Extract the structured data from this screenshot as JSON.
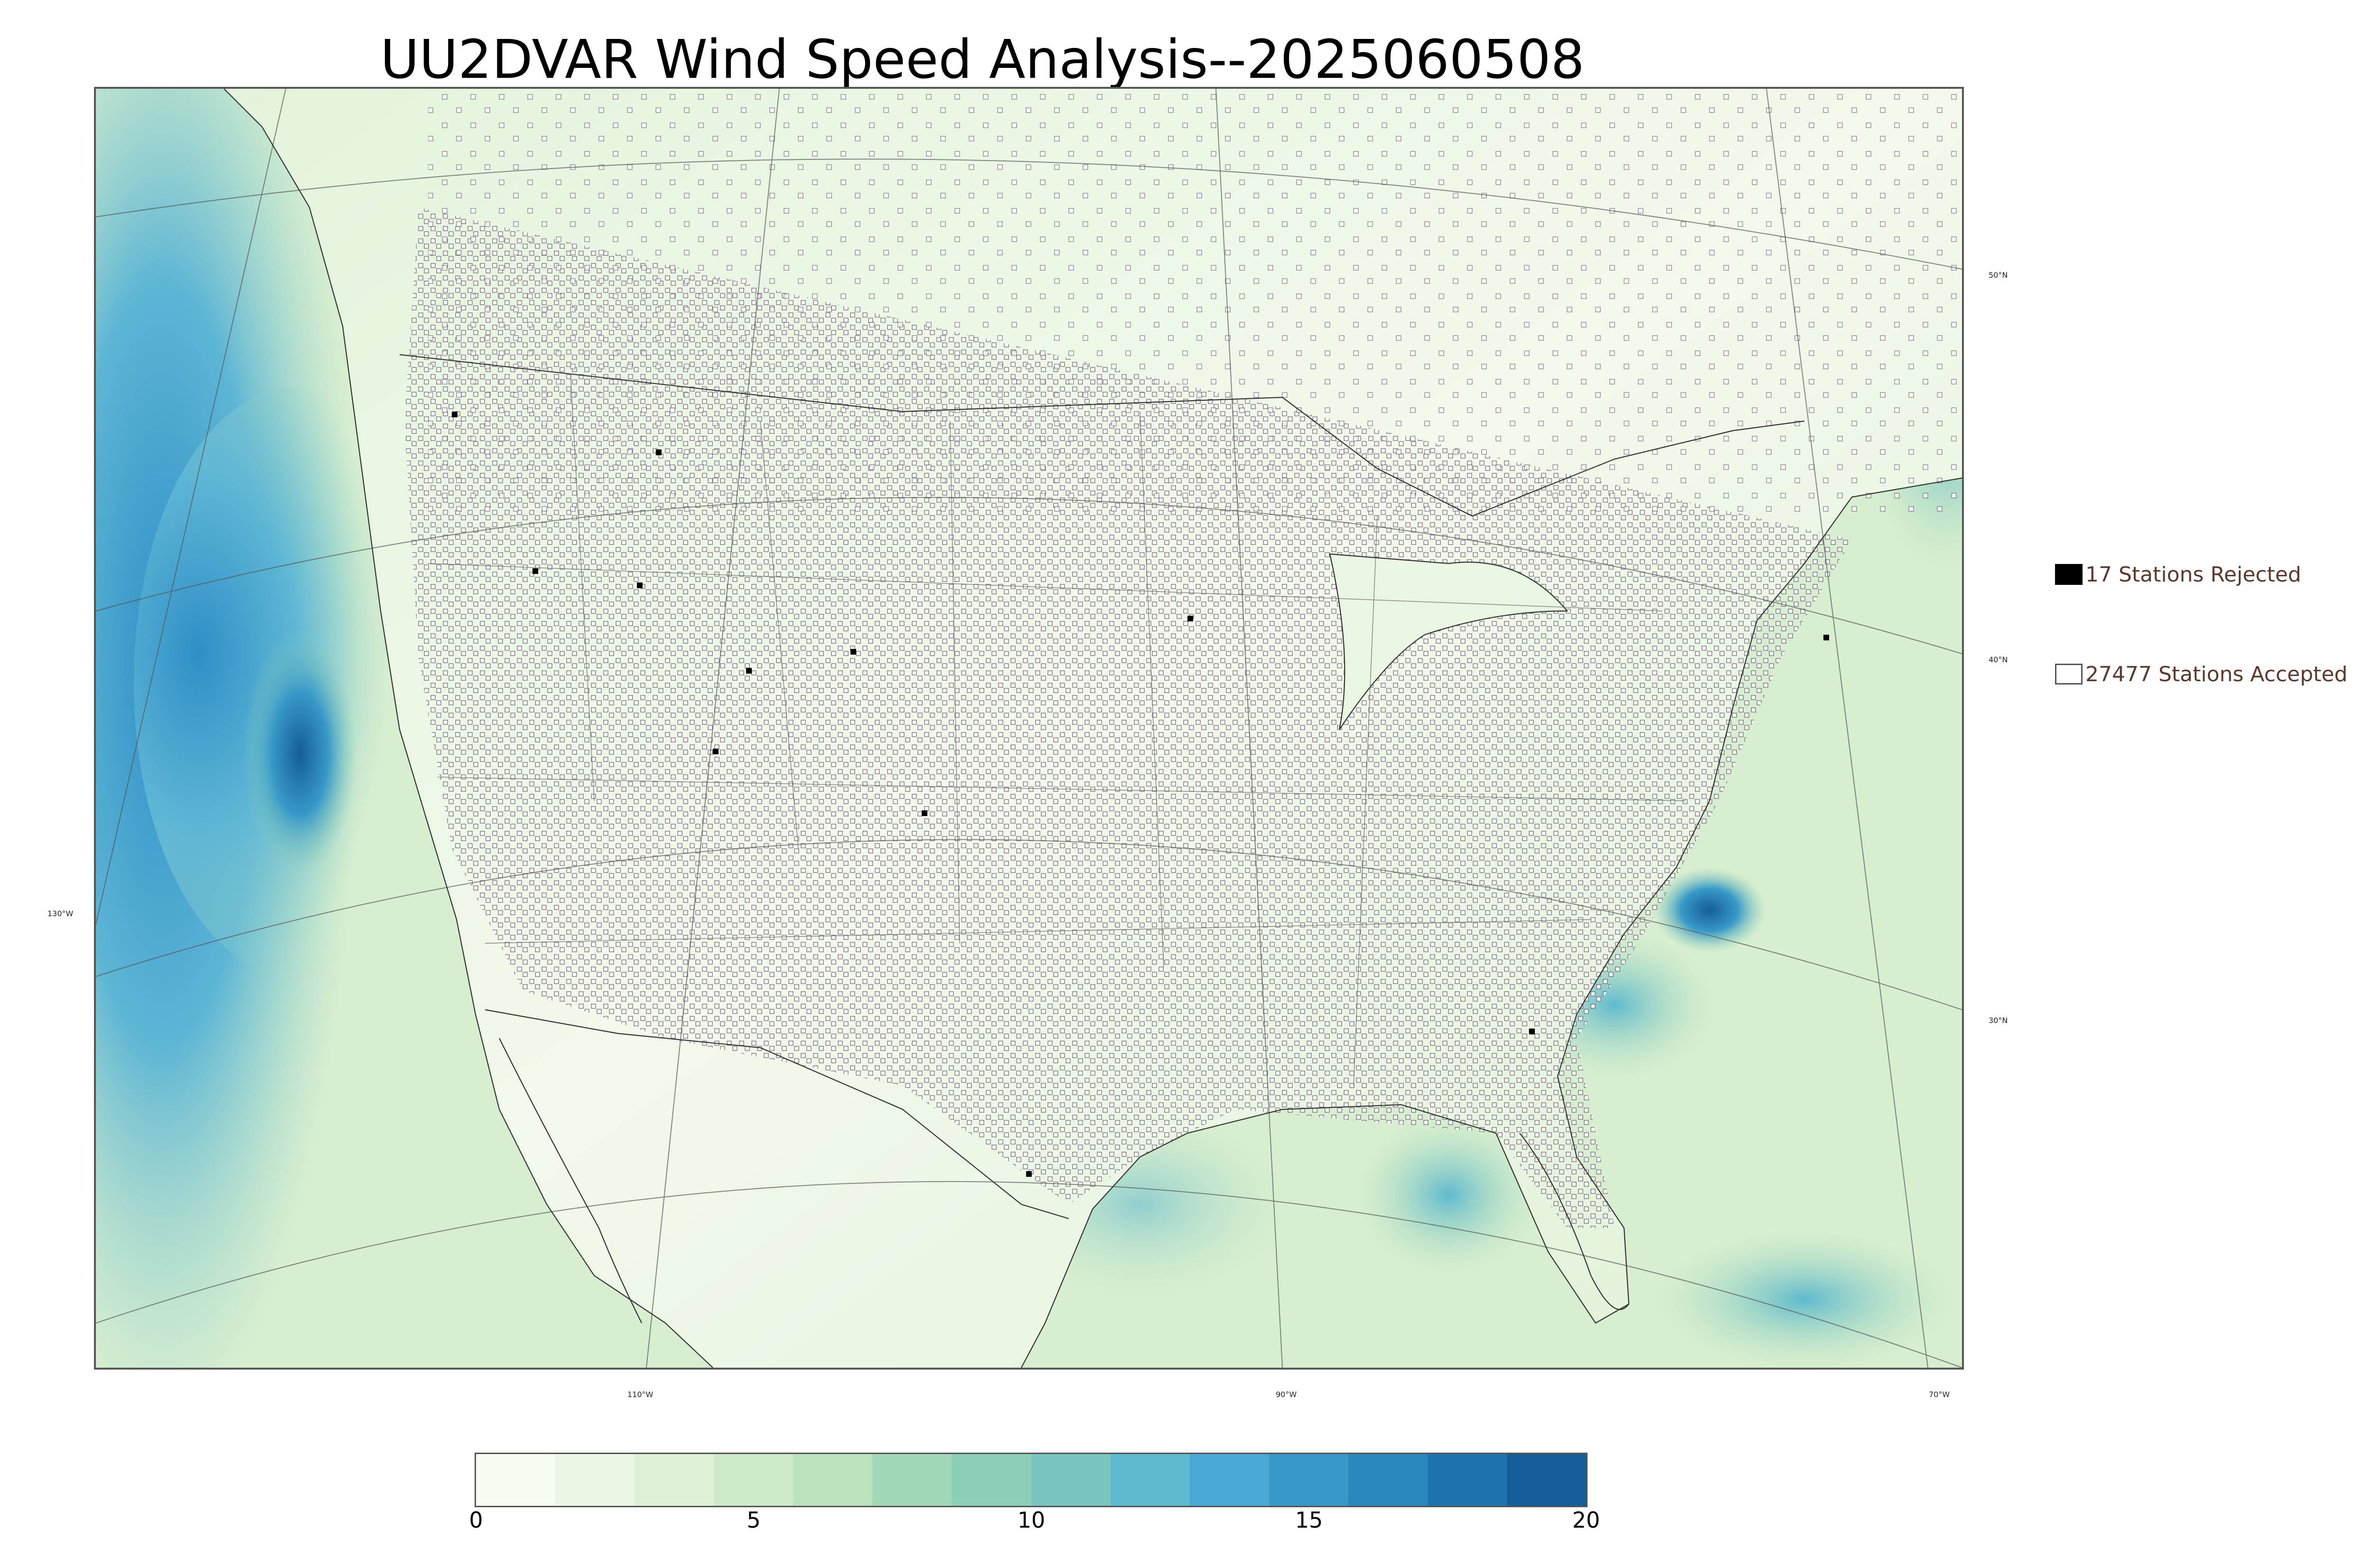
{
  "title": "UU2DVAR Wind Speed Analysis--2025060508",
  "map": {
    "latitude_labels": [
      "50°N",
      "40°N",
      "30°N"
    ],
    "longitude_labels": [
      "130°W",
      "110°W",
      "90°W",
      "70°W"
    ],
    "colors": {
      "land_low": "#eef7e8",
      "land_mid": "#d3ecc8",
      "ocean_mid": "#8fd0c1",
      "ocean_high": "#4aa8d2",
      "ocean_max": "#1f6fab",
      "station_edge": "#6b5a6e"
    }
  },
  "legend": {
    "rejected_label": "17 Stations Rejected",
    "accepted_label": "27477 Stations Accepted"
  },
  "colorbar": {
    "ticks": [
      "0",
      "5",
      "10",
      "15",
      "20"
    ],
    "min": 0,
    "max": 20,
    "colors": [
      "#f7fcf0",
      "#eaf6e3",
      "#ddf1d6",
      "#cdebc6",
      "#b9e3bb",
      "#a1d9b6",
      "#8ccfb8",
      "#78c5c1",
      "#5fb9cf",
      "#4aa9d2",
      "#3899c8",
      "#2a88bf",
      "#1f74b0",
      "#155d98"
    ]
  }
}
